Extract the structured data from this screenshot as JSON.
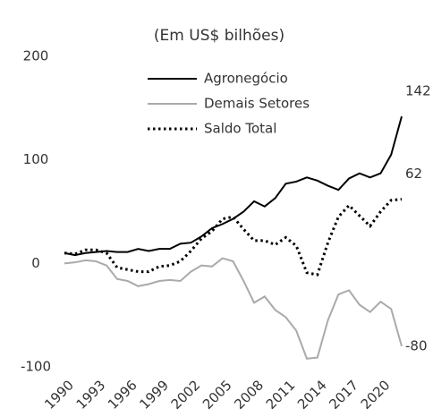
{
  "chart_data": {
    "type": "line",
    "title": "(Em US$ bilhões)",
    "x": [
      1990,
      1991,
      1992,
      1993,
      1994,
      1995,
      1996,
      1997,
      1998,
      1999,
      2000,
      2001,
      2002,
      2003,
      2004,
      2005,
      2006,
      2007,
      2008,
      2009,
      2010,
      2011,
      2012,
      2013,
      2014,
      2015,
      2016,
      2017,
      2018,
      2019,
      2020,
      2021,
      2022
    ],
    "series": [
      {
        "name": "Agronegócio",
        "color": "#000000",
        "style": "solid",
        "values": [
          10,
          8,
          10,
          11,
          12,
          11,
          11,
          14,
          12,
          14,
          14,
          19,
          20,
          26,
          34,
          38,
          43,
          50,
          60,
          55,
          63,
          77,
          79,
          83,
          80,
          75,
          71,
          82,
          87,
          83,
          87,
          105,
          142
        ]
      },
      {
        "name": "Demais Setores",
        "color": "#aaaaaa",
        "style": "solid",
        "values": [
          0,
          1,
          3,
          2,
          -2,
          -15,
          -17,
          -22,
          -20,
          -17,
          -16,
          -17,
          -8,
          -2,
          -3,
          5,
          2,
          -17,
          -38,
          -32,
          -45,
          -52,
          -65,
          -92,
          -91,
          -55,
          -30,
          -26,
          -40,
          -47,
          -37,
          -44,
          -80
        ]
      },
      {
        "name": "Saldo Total",
        "color": "#000000",
        "style": "dotted",
        "values": [
          10,
          9,
          13,
          13,
          10,
          -4,
          -6,
          -8,
          -8,
          -3,
          -2,
          2,
          12,
          24,
          31,
          43,
          45,
          33,
          22,
          22,
          18,
          25,
          17,
          -9,
          -11,
          20,
          45,
          56,
          46,
          36,
          50,
          61,
          62
        ]
      }
    ],
    "xlim": [
      1990,
      2022
    ],
    "xticks": [
      1990,
      1993,
      1996,
      1999,
      2002,
      2005,
      2008,
      2011,
      2014,
      2017,
      2020
    ],
    "ylim": [
      -100,
      200
    ],
    "yticks": [
      -100,
      0,
      100,
      200
    ],
    "grid": false,
    "label_last": true,
    "legend": "top"
  }
}
